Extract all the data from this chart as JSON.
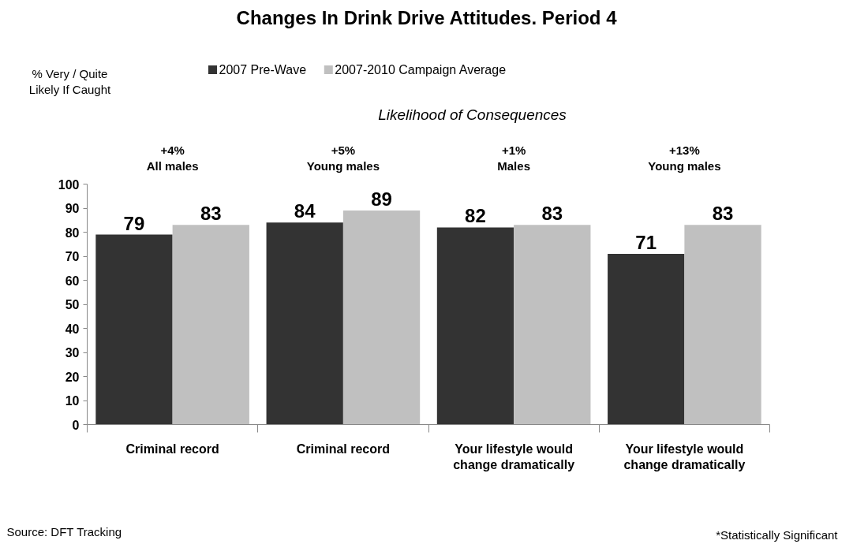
{
  "chart_data": {
    "type": "bar",
    "title": "Changes In Drink Drive Attitudes. Period 4",
    "subtitle": "Likelihood of Consequences",
    "categories": [
      "Criminal record",
      "Criminal record",
      "Your lifestyle would change dramatically",
      "Your lifestyle would change dramatically"
    ],
    "series": [
      {
        "name": "2007 Pre-Wave",
        "color": "#333333",
        "values": [
          79,
          84,
          82,
          71
        ]
      },
      {
        "name": "2007-2010 Campaign Average",
        "color": "#c0c0c0",
        "values": [
          83,
          89,
          83,
          83
        ]
      }
    ],
    "ylim": [
      0,
      100
    ],
    "yticks": [
      0,
      10,
      20,
      30,
      40,
      50,
      60,
      70,
      80,
      90,
      100
    ],
    "grid": false,
    "legend": "top",
    "data_labels": true,
    "annotations": [
      "+4%\nAll males",
      "+5%\nYoung males",
      "+1%\nMales",
      "+13%\nYoung males",
      "% Very / Quite\nLikely If Caught",
      "Source: DFT Tracking",
      "*Statistically Significant"
    ]
  }
}
